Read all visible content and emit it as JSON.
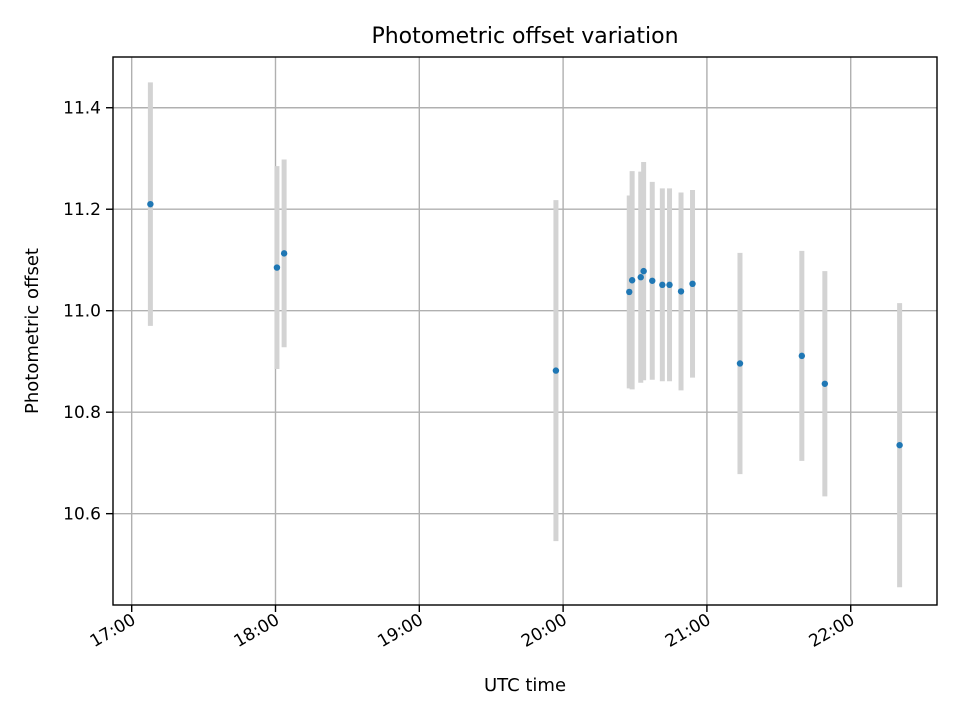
{
  "chart_data": {
    "type": "scatter",
    "title": "Photometric offset variation",
    "xlabel": "UTC time",
    "ylabel": "Photometric offset",
    "x_unit": "hour of day (UTC, decimal)",
    "xlim": [
      16.87,
      22.6
    ],
    "ylim": [
      10.42,
      11.5
    ],
    "x_ticks": [
      {
        "value": 17,
        "label": "17:00"
      },
      {
        "value": 18,
        "label": "18:00"
      },
      {
        "value": 19,
        "label": "19:00"
      },
      {
        "value": 20,
        "label": "20:00"
      },
      {
        "value": 21,
        "label": "21:00"
      },
      {
        "value": 22,
        "label": "22:00"
      }
    ],
    "y_ticks": [
      {
        "value": 10.6,
        "label": "10.6"
      },
      {
        "value": 10.8,
        "label": "10.8"
      },
      {
        "value": 11.0,
        "label": "11.0"
      },
      {
        "value": 11.2,
        "label": "11.2"
      },
      {
        "value": 11.4,
        "label": "11.4"
      }
    ],
    "grid": true,
    "colors": {
      "points": "#1f77b4",
      "errorbars": "#d3d3d3"
    },
    "points": [
      {
        "x": 17.13,
        "y": 11.21,
        "err": 0.24
      },
      {
        "x": 18.01,
        "y": 11.085,
        "err": 0.2
      },
      {
        "x": 18.06,
        "y": 11.113,
        "err": 0.185
      },
      {
        "x": 19.95,
        "y": 10.882,
        "err": 0.336
      },
      {
        "x": 20.46,
        "y": 11.037,
        "err": 0.19
      },
      {
        "x": 20.48,
        "y": 11.06,
        "err": 0.215
      },
      {
        "x": 20.54,
        "y": 11.066,
        "err": 0.208
      },
      {
        "x": 20.56,
        "y": 11.078,
        "err": 0.215
      },
      {
        "x": 20.62,
        "y": 11.059,
        "err": 0.195
      },
      {
        "x": 20.69,
        "y": 11.051,
        "err": 0.19
      },
      {
        "x": 20.74,
        "y": 11.051,
        "err": 0.19
      },
      {
        "x": 20.82,
        "y": 11.038,
        "err": 0.195
      },
      {
        "x": 20.9,
        "y": 11.053,
        "err": 0.185
      },
      {
        "x": 21.23,
        "y": 10.896,
        "err": 0.218
      },
      {
        "x": 21.66,
        "y": 10.911,
        "err": 0.207
      },
      {
        "x": 21.82,
        "y": 10.856,
        "err": 0.222
      },
      {
        "x": 22.34,
        "y": 10.735,
        "err": 0.28
      }
    ]
  }
}
